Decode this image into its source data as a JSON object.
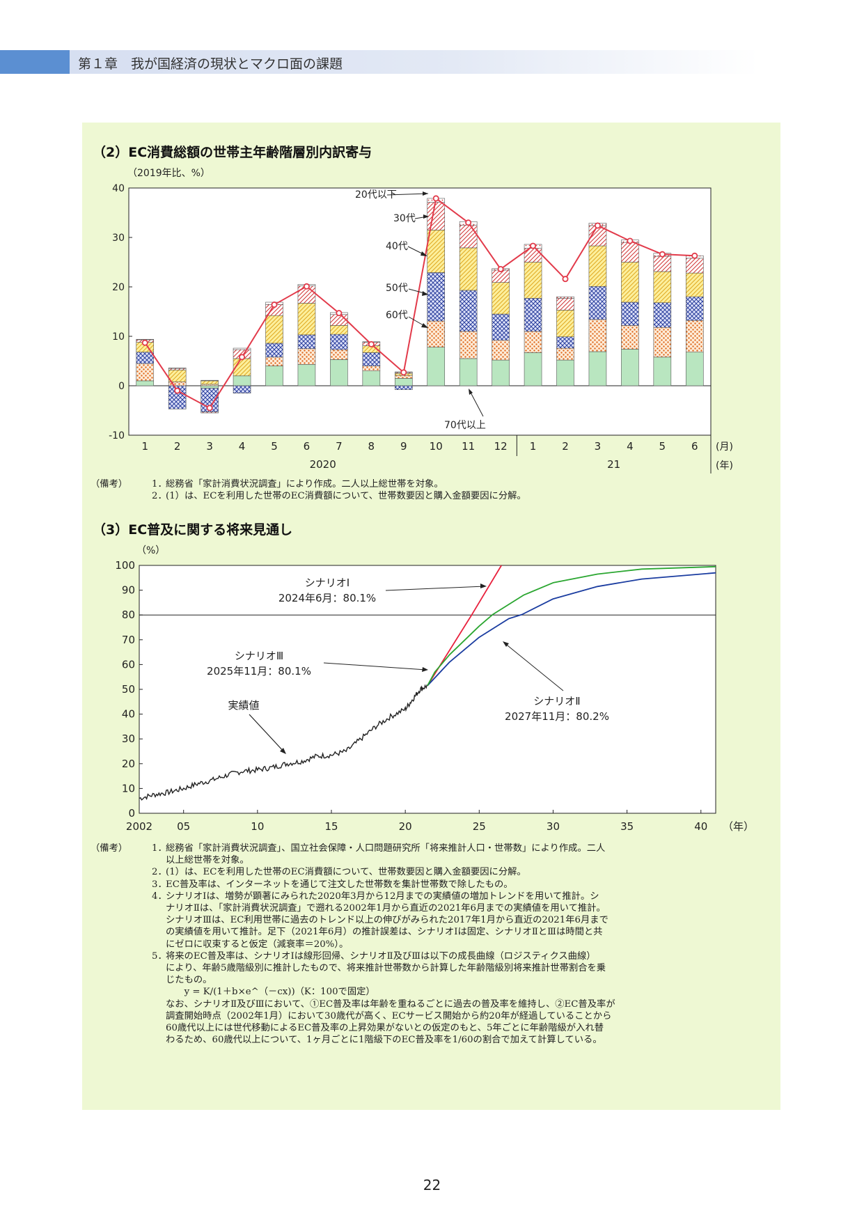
{
  "header": {
    "title": "第１章　我が国経済の現状とマクロ面の課題"
  },
  "colors": {
    "header_tab": "#5b8fd2",
    "panel_bg": "#eef8d3",
    "age20s": "#d23b3b",
    "age30s": "#d23b3b",
    "age40s": "#e0b020",
    "age50s": "#2a3e9c",
    "age60s": "#e06a20",
    "age70plus": "#b9e6c0",
    "total_line": "#e23a4a",
    "scenario1": "#e8203c",
    "scenario2": "#1a3ca0",
    "scenario3": "#2aa630"
  },
  "chart2": {
    "title": "（2）EC消費総額の世帯主年齢階層別内訳寄与",
    "unit": "（2019年比、%）",
    "month_unit": "(月)",
    "year_unit": "(年)",
    "year_labels": [
      "2020",
      "21"
    ],
    "annotations": {
      "age20s": "20代以下",
      "age30s": "30代",
      "age40s": "40代",
      "age50s": "50代",
      "age60s": "60代",
      "age70plus": "70代以上"
    }
  },
  "chart3": {
    "title": "（3）EC普及に関する将来見通し",
    "unit": "（%）",
    "year_unit": "（年）",
    "ann_s1": {
      "name": "シナリオⅠ",
      "value": "2024年6月：80.1%"
    },
    "ann_s3": {
      "name": "シナリオⅢ",
      "value": "2025年11月：80.1%"
    },
    "ann_s2": {
      "name": "シナリオⅡ",
      "value": "2027年11月：80.2%"
    },
    "ann_actual": "実績値"
  },
  "notes2": {
    "lead": "（備考）",
    "items": [
      {
        "num": "1．",
        "text": "総務省「家計消費状況調査」により作成。二人以上総世帯を対象。"
      },
      {
        "num": "2．",
        "text": "(1）は、ECを利用した世帯のEC消費額について、世帯数要因と購入金額要因に分解。"
      }
    ]
  },
  "notes3": {
    "lead": "（備考）",
    "items": [
      {
        "num": "1．",
        "lines": [
          "総務省「家計消費状況調査」、国立社会保障・人口問題研究所「将来推計人口・世帯数」により作成。二人",
          "以上総世帯を対象。"
        ]
      },
      {
        "num": "2．",
        "lines": [
          "(1）は、ECを利用した世帯のEC消費額について、世帯数要因と購入金額要因に分解。"
        ]
      },
      {
        "num": "3．",
        "lines": [
          "EC普及率は、インターネットを通じて注文した世帯数を集計世帯数で除したもの。"
        ]
      },
      {
        "num": "4．",
        "lines": [
          "シナリオⅠは、増勢が顕著にみられた2020年3月から12月までの実績値の増加トレンドを用いて推計。シ",
          "ナリオⅡは、「家計消費状況調査」で遡れる2002年1月から直近の2021年6月までの実績値を用いて推計。",
          "シナリオⅢは、EC利用世帯に過去のトレンド以上の伸びがみられた2017年1月から直近の2021年6月まで",
          "の実績値を用いて推計。足下（2021年6月）の推計誤差は、シナリオⅠは固定、シナリオⅡとⅢは時間と共",
          "にゼロに収束すると仮定（減衰率＝20%）。"
        ]
      },
      {
        "num": "5．",
        "lines": [
          "将来のEC普及率は、シナリオⅠは線形回帰、シナリオⅡ及びⅢは以下の成長曲線（ロジスティクス曲線）",
          "により、年齢5歳階級別に推計したもので、将来推計世帯数から計算した年齢階級別将来推計世帯割合を乗",
          "じたもの。",
          "　　y = K/(1＋b×e^（－cx))（K：100で固定）",
          "なお、シナリオⅡ及びⅢにおいて、①EC普及率は年齢を重ねるごとに過去の普及率を維持し、②EC普及率が",
          "調査開始時点（2002年1月）において30歳代が高く、ECサービス開始から約20年が経過していることから",
          "60歳代以上には世代移動によるEC普及率の上昇効果がないとの仮定のもと、5年ごとに年齢階級が入れ替",
          "わるため、60歳代以上について、1ヶ月ごとに1階級下のEC普及率を1/60の割合で加えて計算している。"
        ]
      }
    ]
  },
  "page_number": "22",
  "chart_data": [
    {
      "type": "bar",
      "stacked": true,
      "categories": [
        "1",
        "2",
        "3",
        "4",
        "5",
        "6",
        "7",
        "8",
        "9",
        "10",
        "11",
        "12",
        "1",
        "2",
        "3",
        "4",
        "5",
        "6"
      ],
      "ylim": [
        -10,
        40
      ],
      "yticks": [
        "40",
        "30",
        "20",
        "10",
        "0",
        "-10"
      ],
      "series": [
        {
          "name": "70代以上",
          "values": [
            1,
            0,
            -0.5,
            2,
            4,
            4.3,
            5.3,
            3,
            1.5,
            7.8,
            5.5,
            5.2,
            6.7,
            5.2,
            6.9,
            7.4,
            5.8,
            6.8
          ]
        },
        {
          "name": "60代",
          "values": [
            3.5,
            0.8,
            0.3,
            0,
            1.8,
            3.2,
            2,
            1,
            0.6,
            5.3,
            5.5,
            4,
            4.3,
            2.4,
            6.5,
            4.8,
            6,
            6.4
          ]
        },
        {
          "name": "50代",
          "values": [
            2.3,
            -4.7,
            -4.8,
            -1.5,
            2.8,
            2.8,
            3.1,
            2.7,
            -0.8,
            9.8,
            8.3,
            5.3,
            6.7,
            2.3,
            6.7,
            4.7,
            5,
            4.8
          ]
        },
        {
          "name": "40代",
          "values": [
            2,
            2.4,
            0.7,
            3.5,
            5.6,
            6.4,
            1.8,
            1.4,
            0.4,
            8.6,
            8.6,
            6.4,
            7.3,
            5.4,
            8.2,
            8.1,
            6.3,
            4.8
          ]
        },
        {
          "name": "30代",
          "values": [
            0.5,
            0.3,
            -0.2,
            1.8,
            2.2,
            3.5,
            2.2,
            0.7,
            0.2,
            5.6,
            4.6,
            2.5,
            2.8,
            2.4,
            4.1,
            4,
            3.1,
            3
          ]
        },
        {
          "name": "20代以下",
          "values": [
            0.1,
            0.1,
            0.1,
            0.3,
            0.5,
            0.3,
            0.4,
            0.1,
            0.1,
            0.8,
            0.7,
            0.3,
            0.8,
            0.3,
            0.5,
            0.5,
            0.6,
            0.5
          ]
        }
      ],
      "total": [
        8.7,
        -1,
        -4.5,
        5.8,
        16.4,
        20.1,
        14.7,
        8.4,
        2.7,
        37.9,
        33,
        23.6,
        28.3,
        21.6,
        32.4,
        29.3,
        26.6,
        26.3
      ]
    },
    {
      "type": "line",
      "xticks": [
        "2002",
        "05",
        "10",
        "15",
        "20",
        "25",
        "30",
        "35",
        "40"
      ],
      "xlim": [
        2002,
        2041
      ],
      "ylim": [
        0,
        100
      ],
      "yticks": [
        "100",
        "90",
        "80",
        "70",
        "60",
        "50",
        "40",
        "30",
        "20",
        "10",
        "0"
      ],
      "reference_line": 80,
      "series": [
        {
          "name": "実績値",
          "x": [
            2002,
            2003,
            2004,
            2005,
            2006,
            2007,
            2008,
            2009,
            2010,
            2011,
            2012,
            2013,
            2014,
            2015,
            2016,
            2017,
            2018,
            2019,
            2020,
            2020.5,
            2021,
            2021.5
          ],
          "y": [
            6,
            7.5,
            8.5,
            10,
            12,
            13.5,
            15.5,
            17,
            17.5,
            18.5,
            20,
            21,
            23,
            23.5,
            25,
            30,
            35,
            39,
            42,
            46,
            50,
            51.5
          ]
        },
        {
          "name": "シナリオⅠ",
          "x": [
            2021.5,
            2024.5,
            2026.5
          ],
          "y": [
            51.5,
            80.1,
            100
          ]
        },
        {
          "name": "シナリオⅡ",
          "x": [
            2021.5,
            2023,
            2025,
            2027,
            2027.9,
            2030,
            2033,
            2036,
            2041
          ],
          "y": [
            51.5,
            61,
            71,
            78.5,
            80.2,
            86.5,
            91.5,
            94.5,
            97
          ]
        },
        {
          "name": "シナリオⅢ",
          "x": [
            2021.5,
            2022,
            2023,
            2025,
            2025.9,
            2028,
            2030,
            2033,
            2036,
            2041
          ],
          "y": [
            51.5,
            57,
            64,
            75.5,
            80.1,
            88,
            93,
            96.5,
            98.5,
            99.5
          ]
        }
      ]
    }
  ]
}
